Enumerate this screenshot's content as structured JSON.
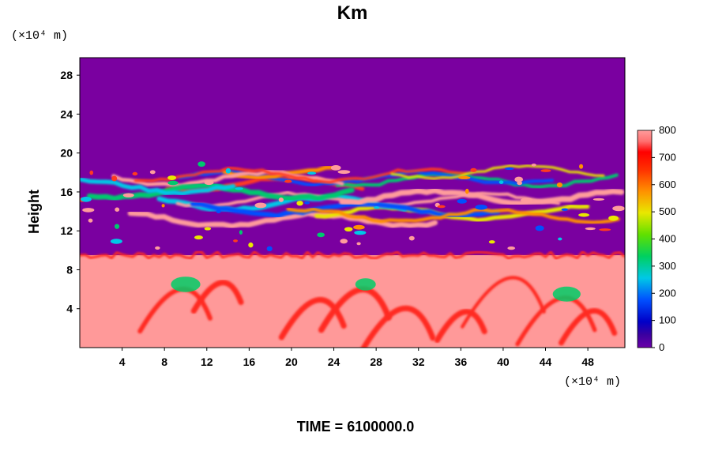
{
  "chart_data": {
    "type": "heatmap",
    "title": "Km",
    "ylabel": "Height",
    "y_unit_label": "(×10⁴ m)",
    "x_unit_label": "(×10⁴ m)",
    "x_ticks": [
      "4",
      "8",
      "12",
      "16",
      "20",
      "24",
      "28",
      "32",
      "36",
      "40",
      "44",
      "48"
    ],
    "y_ticks": [
      "4",
      "8",
      "12",
      "16",
      "20",
      "24",
      "28"
    ],
    "xlim": [
      0,
      51.5
    ],
    "ylim": [
      0,
      29.8
    ],
    "colorbar": {
      "ticks": [
        "0",
        "100",
        "200",
        "300",
        "400",
        "500",
        "600",
        "700",
        "800"
      ],
      "range": [
        0,
        800
      ]
    },
    "regions": [
      {
        "name": "upper",
        "y_range": [
          19.5,
          29.8
        ],
        "value": 0
      },
      {
        "name": "upper-turbulent-layer",
        "y_range": [
          12,
          19.5
        ],
        "value_range": [
          0,
          800
        ]
      },
      {
        "name": "middle-quiet",
        "y_range": [
          9.5,
          12
        ],
        "value": 0
      },
      {
        "name": "lower-turbulent",
        "y_range": [
          0,
          9.5
        ],
        "value_range": [
          300,
          800
        ]
      }
    ],
    "colors": {
      "low": "#7a00a0",
      "mid": "#00cc66",
      "high": "#ff9999",
      "peak": "#ff2a20"
    }
  },
  "footer": {
    "time_label": "TIME = 6100000.0"
  }
}
